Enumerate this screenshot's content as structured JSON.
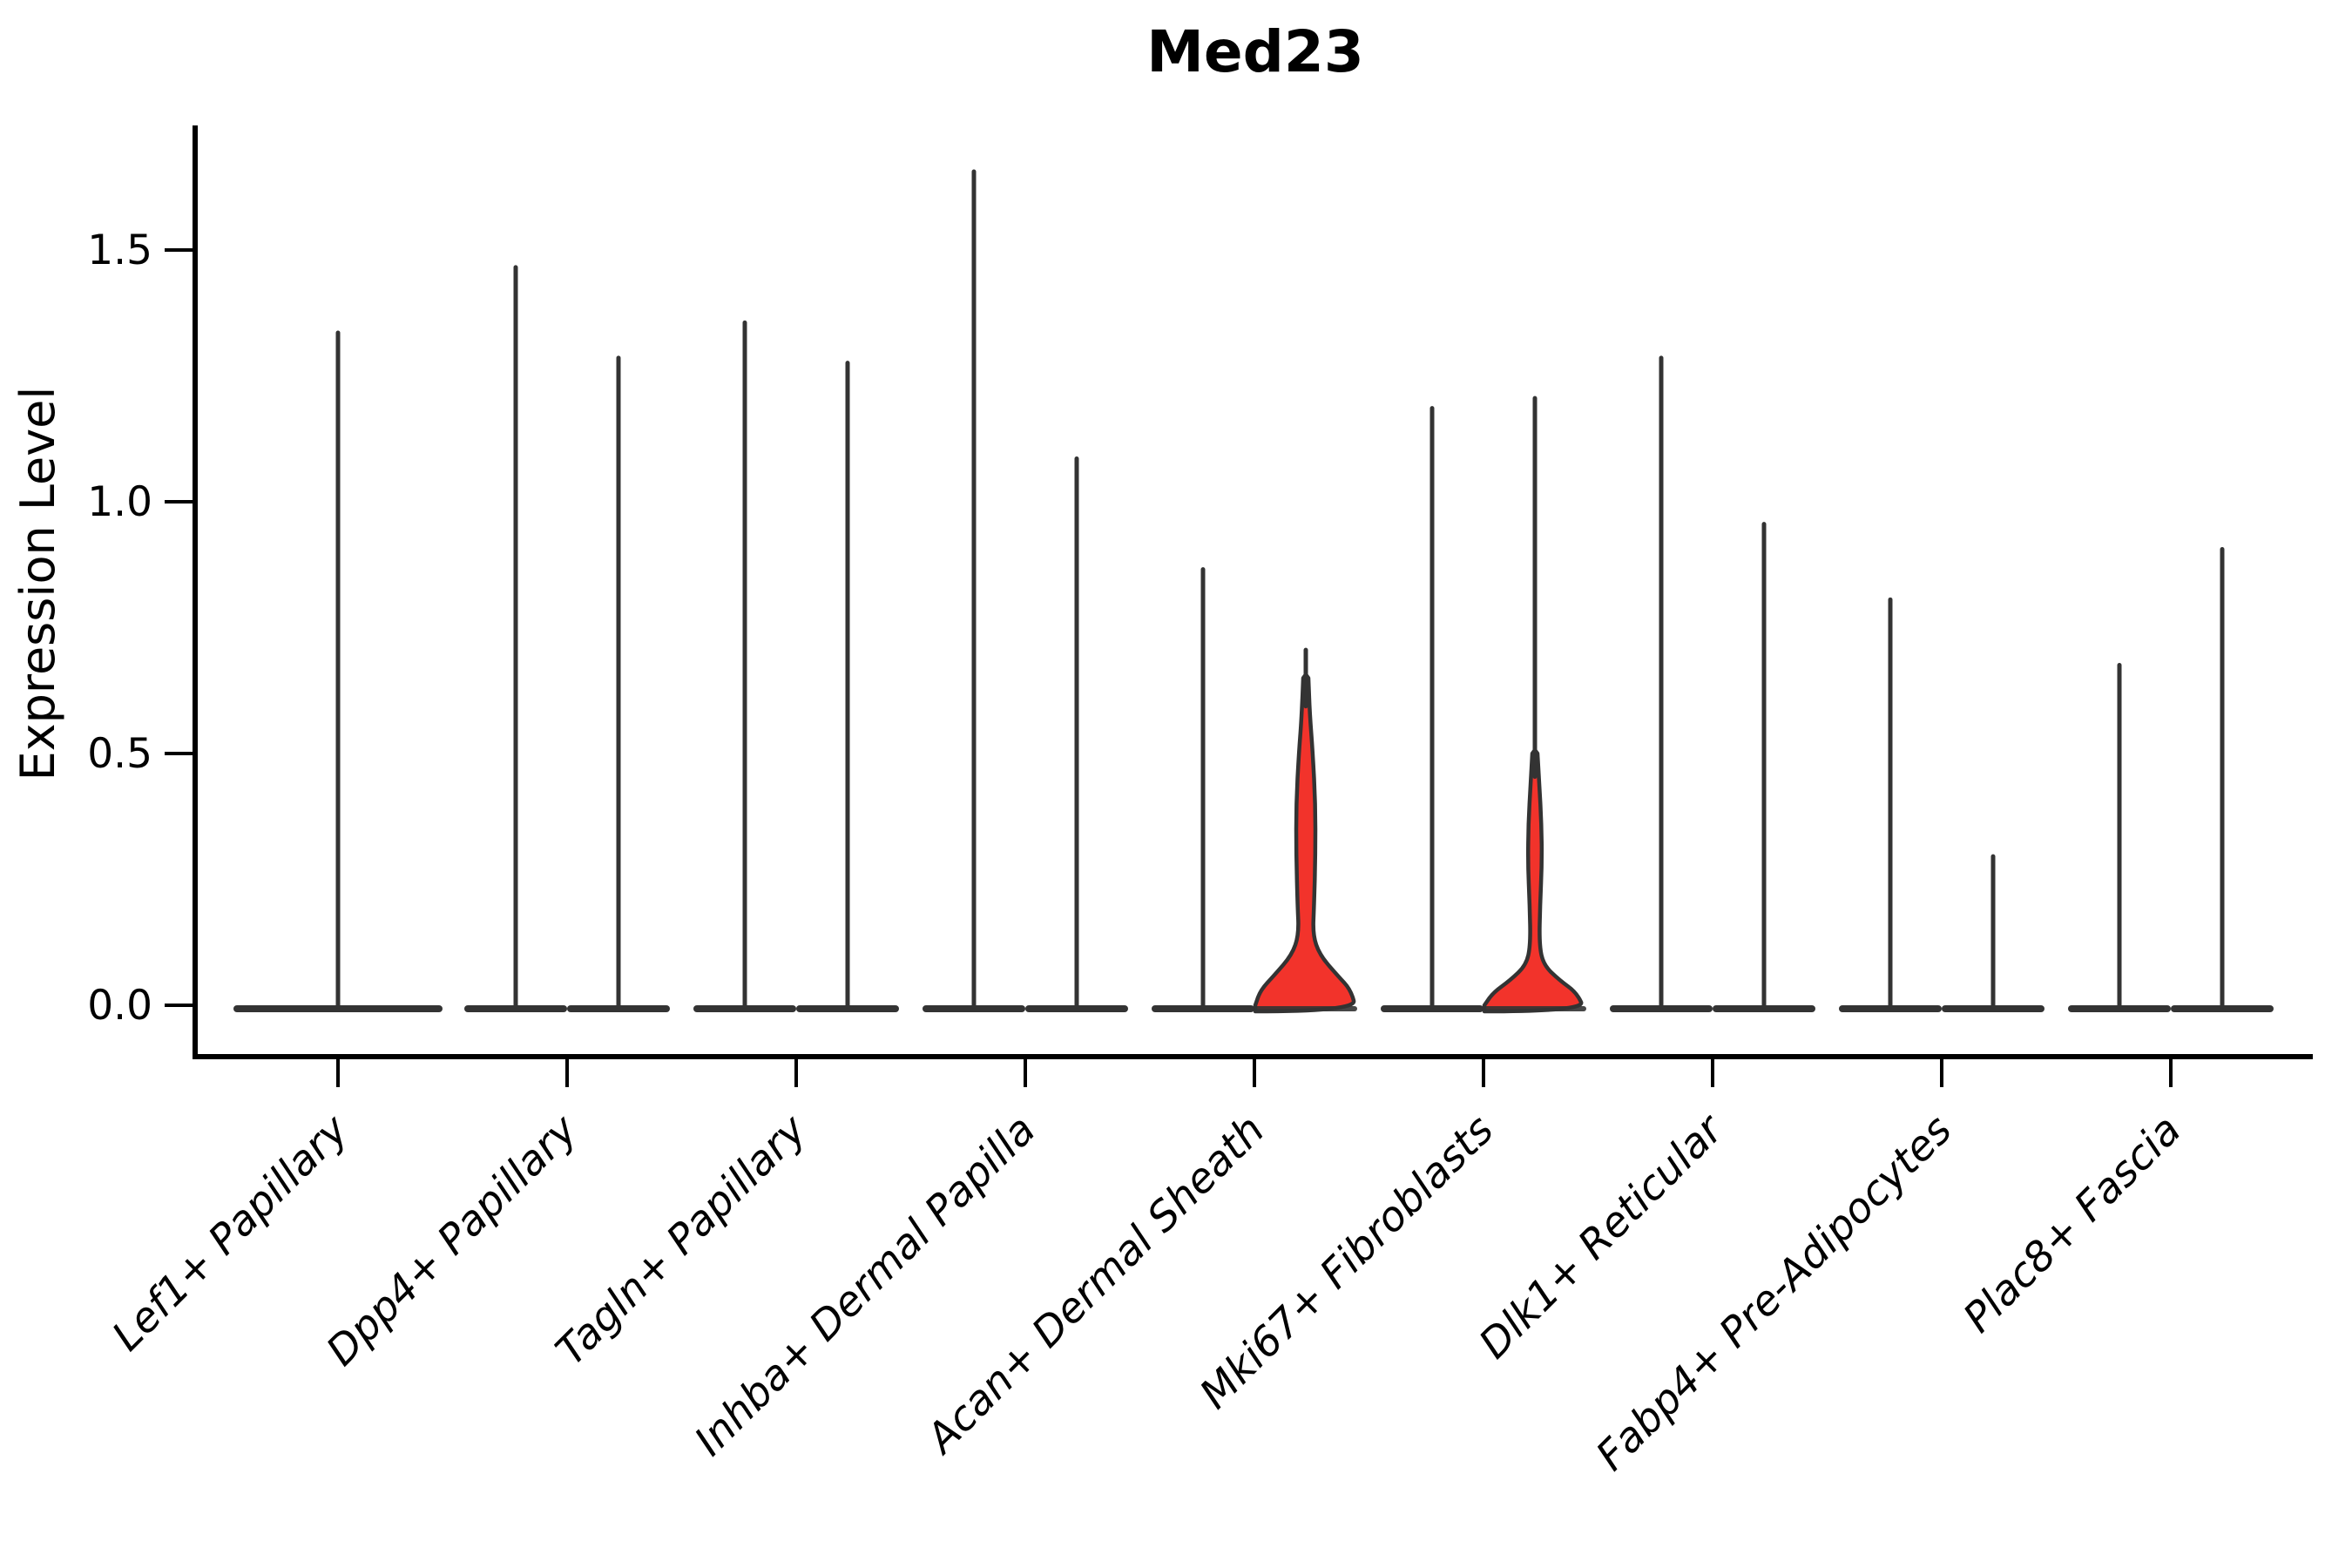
{
  "chart_data": {
    "type": "violin",
    "title": "Med23",
    "ylabel": "Expression Level",
    "ylim": [
      0,
      1.72
    ],
    "grid": false,
    "legend": "none",
    "yticks": [
      {
        "label": "0.0",
        "value": 0.0
      },
      {
        "label": "0.5",
        "value": 0.5
      },
      {
        "label": "1.0",
        "value": 1.0
      },
      {
        "label": "1.5",
        "value": 1.5
      }
    ],
    "x_tick_rotation_deg": 45,
    "categories": [
      {
        "label": "Lef1+ Papillary",
        "violins": [
          {
            "position": "center",
            "max": 1.34,
            "filled": false
          }
        ]
      },
      {
        "label": "Dpp4+ Papillary",
        "violins": [
          {
            "position": "left",
            "max": 1.47,
            "filled": false
          },
          {
            "position": "right",
            "max": 1.29,
            "filled": false
          }
        ]
      },
      {
        "label": "Tagln+ Papillary",
        "violins": [
          {
            "position": "left",
            "max": 1.36,
            "filled": false
          },
          {
            "position": "right",
            "max": 1.28,
            "filled": false
          }
        ]
      },
      {
        "label": "Inhba+ Dermal Papilla",
        "violins": [
          {
            "position": "left",
            "max": 1.66,
            "filled": false
          },
          {
            "position": "right",
            "max": 1.09,
            "filled": false
          }
        ]
      },
      {
        "label": "Acan+ Dermal Sheath",
        "violins": [
          {
            "position": "left",
            "max": 0.87,
            "filled": false
          },
          {
            "position": "right",
            "max": 0.71,
            "filled": true,
            "profile": [
              [
                0.0,
                58
              ],
              [
                0.03,
                52
              ],
              [
                0.06,
                36
              ],
              [
                0.1,
                16
              ],
              [
                0.14,
                8
              ],
              [
                0.2,
                9.5
              ],
              [
                0.3,
                11
              ],
              [
                0.4,
                11
              ],
              [
                0.5,
                8
              ],
              [
                0.58,
                4.5
              ],
              [
                0.65,
                3
              ]
            ],
            "spike_from": 0.6
          }
        ]
      },
      {
        "label": "Mki67+ Fibroblasts",
        "violins": [
          {
            "position": "left",
            "max": 1.19,
            "filled": false
          },
          {
            "position": "right",
            "max": 1.21,
            "filled": true,
            "profile": [
              [
                0.0,
                58
              ],
              [
                0.025,
                48
              ],
              [
                0.05,
                28
              ],
              [
                0.08,
                10
              ],
              [
                0.12,
                5
              ],
              [
                0.2,
                6
              ],
              [
                0.28,
                8
              ],
              [
                0.36,
                7.5
              ],
              [
                0.44,
                5
              ],
              [
                0.5,
                3
              ]
            ],
            "spike_from": 0.46
          }
        ]
      },
      {
        "label": "Dlk1+ Reticular",
        "violins": [
          {
            "position": "left",
            "max": 1.29,
            "filled": false
          },
          {
            "position": "right",
            "max": 0.96,
            "filled": false
          }
        ]
      },
      {
        "label": "Fabp4+ Pre-Adipocytes",
        "violins": [
          {
            "position": "left",
            "max": 0.81,
            "filled": false
          },
          {
            "position": "right",
            "max": 0.3,
            "filled": false
          }
        ]
      },
      {
        "label": "Plac8+ Fascia",
        "violins": [
          {
            "position": "left",
            "max": 0.68,
            "filled": false
          },
          {
            "position": "right",
            "max": 0.91,
            "filled": false
          }
        ]
      }
    ],
    "colors": {
      "violin_fill": "#f2332b",
      "violin_stroke": "#333333",
      "axis": "#000000",
      "text": "#000000",
      "background": "#ffffff"
    }
  }
}
